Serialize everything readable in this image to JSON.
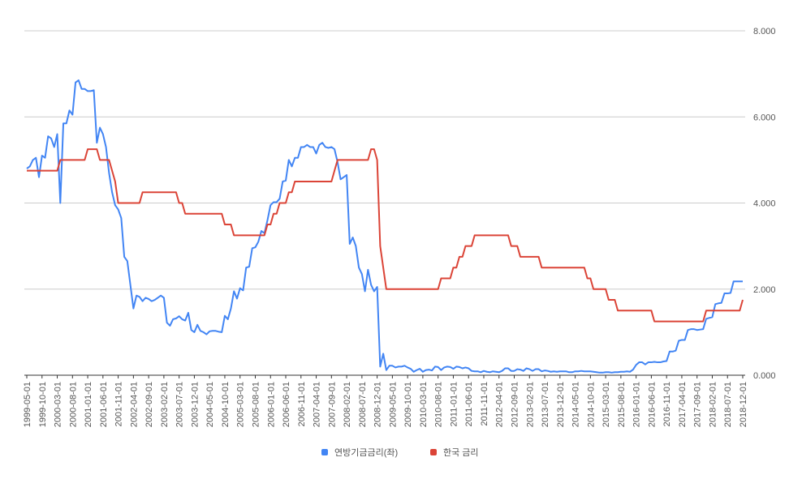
{
  "chart_data": {
    "type": "line",
    "categories": [
      "1999-05-01",
      null,
      null,
      null,
      null,
      "1999-10-01",
      null,
      null,
      null,
      null,
      "2000-03-01",
      null,
      null,
      null,
      null,
      "2000-08-01",
      null,
      null,
      null,
      null,
      "2001-01-01",
      null,
      null,
      null,
      null,
      "2001-06-01",
      null,
      null,
      null,
      null,
      "2001-11-01",
      null,
      null,
      null,
      null,
      "2002-04-01",
      null,
      null,
      null,
      null,
      "2002-09-01",
      null,
      null,
      null,
      null,
      "2003-02-01",
      null,
      null,
      null,
      null,
      "2003-07-01",
      null,
      null,
      null,
      null,
      "2003-12-01",
      null,
      null,
      null,
      null,
      "2004-05-01",
      null,
      null,
      null,
      null,
      "2004-10-01",
      null,
      null,
      null,
      null,
      "2005-03-01",
      null,
      null,
      null,
      null,
      "2005-08-01",
      null,
      null,
      null,
      null,
      "2006-01-01",
      null,
      null,
      null,
      null,
      "2006-06-01",
      null,
      null,
      null,
      null,
      "2006-11-01",
      null,
      null,
      null,
      null,
      "2007-04-01",
      null,
      null,
      null,
      null,
      "2007-09-01",
      null,
      null,
      null,
      null,
      "2008-02-01",
      null,
      null,
      null,
      null,
      "2008-07-01",
      null,
      null,
      null,
      null,
      "2008-12-01",
      null,
      null,
      null,
      null,
      "2009-05-01",
      null,
      null,
      null,
      null,
      "2009-10-01",
      null,
      null,
      null,
      null,
      "2010-03-01",
      null,
      null,
      null,
      null,
      "2010-08-01",
      null,
      null,
      null,
      null,
      "2011-01-01",
      null,
      null,
      null,
      null,
      "2011-06-01",
      null,
      null,
      null,
      null,
      "2011-11-01",
      null,
      null,
      null,
      null,
      "2012-04-01",
      null,
      null,
      null,
      null,
      "2012-09-01",
      null,
      null,
      null,
      null,
      "2013-02-01",
      null,
      null,
      null,
      null,
      "2013-07-01",
      null,
      null,
      null,
      null,
      "2013-12-01",
      null,
      null,
      null,
      null,
      "2014-05-01",
      null,
      null,
      null,
      null,
      "2014-10-01",
      null,
      null,
      null,
      null,
      "2015-03-01",
      null,
      null,
      null,
      null,
      "2015-08-01",
      null,
      null,
      null,
      null,
      "2016-01-01",
      null,
      null,
      null,
      null,
      "2016-06-01",
      null,
      null,
      null,
      null,
      "2016-11-01",
      null,
      null,
      null,
      null,
      "2017-04-01",
      null,
      null,
      null,
      null,
      "2017-09-01",
      null,
      null,
      null,
      null,
      "2018-02-01",
      null,
      null,
      null,
      null,
      "2018-07-01",
      null,
      null,
      null,
      null,
      "2018-12-01"
    ],
    "series": [
      {
        "name": "연방기금금리(좌)",
        "color": "#4285f4",
        "values": [
          4.8,
          4.85,
          5,
          5.05,
          4.6,
          5.1,
          5.05,
          5.55,
          5.5,
          5.3,
          5.6,
          4,
          5.85,
          5.85,
          6.15,
          6.05,
          6.8,
          6.85,
          6.65,
          6.65,
          6.6,
          6.6,
          6.62,
          5.4,
          5.75,
          5.6,
          5.3,
          4.7,
          4.25,
          3.95,
          3.85,
          3.65,
          2.75,
          2.65,
          2.1,
          1.55,
          1.85,
          1.82,
          1.72,
          1.8,
          1.77,
          1.72,
          1.75,
          1.8,
          1.85,
          1.8,
          1.22,
          1.15,
          1.3,
          1.32,
          1.37,
          1.3,
          1.27,
          1.45,
          1.05,
          1,
          1.17,
          1.03,
          1,
          0.95,
          1.02,
          1.03,
          1.03,
          1.01,
          1,
          1.38,
          1.3,
          1.55,
          1.95,
          1.78,
          2.02,
          1.97,
          2.5,
          2.52,
          2.95,
          2.97,
          3.1,
          3.35,
          3.3,
          3.6,
          3.95,
          4.02,
          4.02,
          4.1,
          4.5,
          4.52,
          5,
          4.85,
          5.05,
          5.05,
          5.3,
          5.3,
          5.35,
          5.3,
          5.3,
          5.15,
          5.35,
          5.4,
          5.3,
          5.28,
          5.3,
          5.25,
          4.95,
          4.55,
          4.6,
          4.65,
          3.05,
          3.2,
          3,
          2.5,
          2.35,
          1.95,
          2.45,
          2.1,
          1.95,
          2.05,
          0.2,
          0.5,
          0.12,
          0.22,
          0.22,
          0.18,
          0.2,
          0.2,
          0.22,
          0.18,
          0.15,
          0.08,
          0.12,
          0.15,
          0.08,
          0.12,
          0.13,
          0.11,
          0.2,
          0.19,
          0.12,
          0.18,
          0.2,
          0.19,
          0.15,
          0.2,
          0.19,
          0.16,
          0.18,
          0.16,
          0.1,
          0.09,
          0.09,
          0.07,
          0.1,
          0.08,
          0.07,
          0.09,
          0.08,
          0.07,
          0.1,
          0.16,
          0.16,
          0.1,
          0.1,
          0.14,
          0.13,
          0.1,
          0.16,
          0.14,
          0.1,
          0.14,
          0.14,
          0.09,
          0.11,
          0.1,
          0.08,
          0.09,
          0.08,
          0.09,
          0.09,
          0.09,
          0.07,
          0.07,
          0.09,
          0.09,
          0.1,
          0.09,
          0.09,
          0.09,
          0.08,
          0.07,
          0.06,
          0.06,
          0.07,
          0.07,
          0.06,
          0.07,
          0.07,
          0.08,
          0.08,
          0.09,
          0.08,
          0.13,
          0.24,
          0.3,
          0.3,
          0.25,
          0.3,
          0.3,
          0.31,
          0.3,
          0.3,
          0.32,
          0.33,
          0.55,
          0.55,
          0.57,
          0.8,
          0.82,
          0.82,
          1.05,
          1.07,
          1.07,
          1.05,
          1.06,
          1.07,
          1.31,
          1.33,
          1.35,
          1.65,
          1.67,
          1.68,
          1.9,
          1.9,
          1.91,
          2.18,
          2.18,
          2.18,
          2.18
        ]
      },
      {
        "name": "한국 금리",
        "color": "#db4437",
        "values": [
          4.75,
          4.75,
          4.75,
          4.75,
          4.75,
          4.75,
          4.75,
          4.75,
          4.75,
          4.75,
          4.75,
          5,
          5,
          5,
          5,
          5,
          5,
          5,
          5,
          5,
          5.25,
          5.25,
          5.25,
          5.25,
          5,
          5,
          5,
          5,
          4.75,
          4.5,
          4,
          4,
          4,
          4,
          4,
          4,
          4,
          4,
          4.25,
          4.25,
          4.25,
          4.25,
          4.25,
          4.25,
          4.25,
          4.25,
          4.25,
          4.25,
          4.25,
          4.25,
          4,
          4,
          3.75,
          3.75,
          3.75,
          3.75,
          3.75,
          3.75,
          3.75,
          3.75,
          3.75,
          3.75,
          3.75,
          3.75,
          3.75,
          3.5,
          3.5,
          3.5,
          3.25,
          3.25,
          3.25,
          3.25,
          3.25,
          3.25,
          3.25,
          3.25,
          3.25,
          3.25,
          3.25,
          3.5,
          3.5,
          3.75,
          3.75,
          4,
          4,
          4,
          4.25,
          4.25,
          4.5,
          4.5,
          4.5,
          4.5,
          4.5,
          4.5,
          4.5,
          4.5,
          4.5,
          4.5,
          4.5,
          4.5,
          4.5,
          4.75,
          5,
          5,
          5,
          5,
          5,
          5,
          5,
          5,
          5,
          5,
          5,
          5.25,
          5.25,
          5,
          3,
          2.5,
          2,
          2,
          2,
          2,
          2,
          2,
          2,
          2,
          2,
          2,
          2,
          2,
          2,
          2,
          2,
          2,
          2,
          2,
          2.25,
          2.25,
          2.25,
          2.25,
          2.5,
          2.5,
          2.75,
          2.75,
          3,
          3,
          3,
          3.25,
          3.25,
          3.25,
          3.25,
          3.25,
          3.25,
          3.25,
          3.25,
          3.25,
          3.25,
          3.25,
          3.25,
          3,
          3,
          3,
          2.75,
          2.75,
          2.75,
          2.75,
          2.75,
          2.75,
          2.75,
          2.5,
          2.5,
          2.5,
          2.5,
          2.5,
          2.5,
          2.5,
          2.5,
          2.5,
          2.5,
          2.5,
          2.5,
          2.5,
          2.5,
          2.5,
          2.25,
          2.25,
          2,
          2,
          2,
          2,
          2,
          1.75,
          1.75,
          1.75,
          1.5,
          1.5,
          1.5,
          1.5,
          1.5,
          1.5,
          1.5,
          1.5,
          1.5,
          1.5,
          1.5,
          1.5,
          1.25,
          1.25,
          1.25,
          1.25,
          1.25,
          1.25,
          1.25,
          1.25,
          1.25,
          1.25,
          1.25,
          1.25,
          1.25,
          1.25,
          1.25,
          1.25,
          1.25,
          1.5,
          1.5,
          1.5,
          1.5,
          1.5,
          1.5,
          1.5,
          1.5,
          1.5,
          1.5,
          1.5,
          1.5,
          1.75
        ]
      }
    ],
    "ylim": [
      0,
      8
    ],
    "yticks": [
      {
        "value": 0,
        "label": "0.000"
      },
      {
        "value": 2,
        "label": "2.000"
      },
      {
        "value": 4,
        "label": "4.000"
      },
      {
        "value": 6,
        "label": "6.000"
      },
      {
        "value": 8,
        "label": "8.000"
      }
    ],
    "grid": true
  }
}
